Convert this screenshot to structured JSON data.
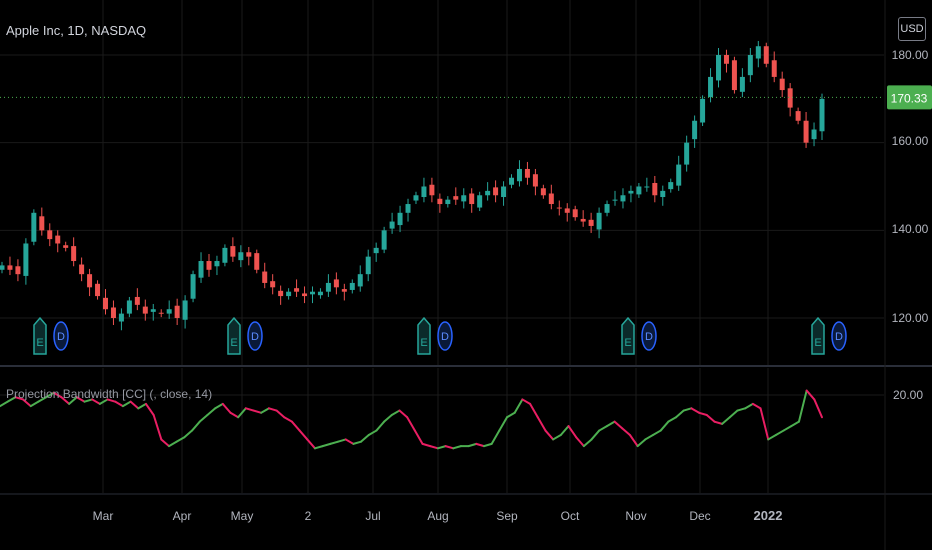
{
  "header": {
    "title": "Apple Inc, 1D, NASDAQ",
    "currency": "USD"
  },
  "price_pane": {
    "y_ticks": [
      "180.00",
      "170.00",
      "160.00",
      "140.00",
      "120.00"
    ],
    "last_price": "170.33",
    "last_price_color": "#4caf50"
  },
  "indicator_pane": {
    "title": "Projection Bandwidth [CC] (, close, 14)",
    "y_tick": "20.00"
  },
  "x_axis": {
    "labels": [
      "Mar",
      "Apr",
      "May",
      "2",
      "Jul",
      "Aug",
      "Sep",
      "Oct",
      "Nov",
      "Dec",
      "2022"
    ]
  },
  "events": [
    {
      "e": "E",
      "d": "D"
    },
    {
      "e": "E",
      "d": "D"
    },
    {
      "e": "E",
      "d": "D"
    },
    {
      "e": "E",
      "d": "D"
    },
    {
      "e": "E",
      "d": "D"
    }
  ],
  "colors": {
    "up": "#26a69a",
    "down": "#ef5350",
    "ind_up": "#4caf50",
    "ind_down": "#e91e63",
    "bg": "#000000"
  },
  "chart_data": [
    {
      "type": "candlestick",
      "title": "Apple Inc, 1D, NASDAQ",
      "ylim": [
        110,
        182
      ],
      "x_labels": [
        "Mar",
        "Apr",
        "May",
        "2",
        "Jul",
        "Aug",
        "Sep",
        "Oct",
        "Nov",
        "Dec",
        "2022"
      ],
      "close": [
        132,
        131,
        130,
        137,
        144,
        140,
        138,
        137,
        136,
        133,
        130,
        127,
        125,
        122,
        120,
        121,
        124,
        123,
        121,
        122,
        121,
        122,
        120,
        124,
        130,
        133,
        131,
        133,
        136,
        134,
        135,
        134,
        131,
        128,
        127,
        125,
        126,
        126,
        125,
        126,
        126,
        128,
        127,
        126,
        128,
        130,
        134,
        136,
        140,
        142,
        144,
        146,
        148,
        150,
        148,
        146,
        147,
        147,
        148,
        146,
        148,
        149,
        148,
        150,
        152,
        154,
        152,
        150,
        148,
        146,
        145,
        144,
        143,
        142,
        141,
        144,
        146,
        147,
        148,
        149,
        150,
        150,
        148,
        149,
        151,
        155,
        160,
        165,
        170,
        175,
        180,
        178,
        172,
        175,
        180,
        182,
        178,
        175,
        172,
        168,
        165,
        160,
        163,
        170
      ]
    },
    {
      "type": "line",
      "title": "Projection Bandwidth [CC] (, close, 14)",
      "ylim": [
        1,
        21
      ],
      "values": [
        17.5,
        18.5,
        19.5,
        19,
        17.5,
        18.5,
        19.5,
        20.5,
        19.5,
        18,
        19.5,
        18.5,
        19,
        18,
        19,
        18.5,
        17.5,
        18.5,
        17,
        18,
        15.5,
        10,
        8.5,
        9.5,
        10.5,
        12,
        14,
        15.5,
        17,
        18,
        16,
        15,
        17,
        16.5,
        16,
        17,
        16.5,
        15,
        14,
        12,
        10,
        8,
        8.5,
        9,
        9.5,
        10,
        9,
        9.5,
        11,
        12,
        14,
        15.5,
        16.5,
        15,
        12,
        9,
        8.5,
        8,
        8.5,
        8,
        8.5,
        8.5,
        9,
        8.5,
        9,
        12,
        15,
        16,
        19,
        18,
        15,
        12,
        10,
        11,
        13,
        10.5,
        8.5,
        10,
        12,
        13,
        14,
        12.5,
        11,
        8.5,
        10,
        11,
        12,
        14,
        15,
        16.5,
        17,
        16,
        15.5,
        14,
        13.5,
        15,
        16.5,
        17,
        18,
        17,
        10,
        11,
        12,
        13,
        14,
        21,
        19,
        15
      ]
    }
  ]
}
